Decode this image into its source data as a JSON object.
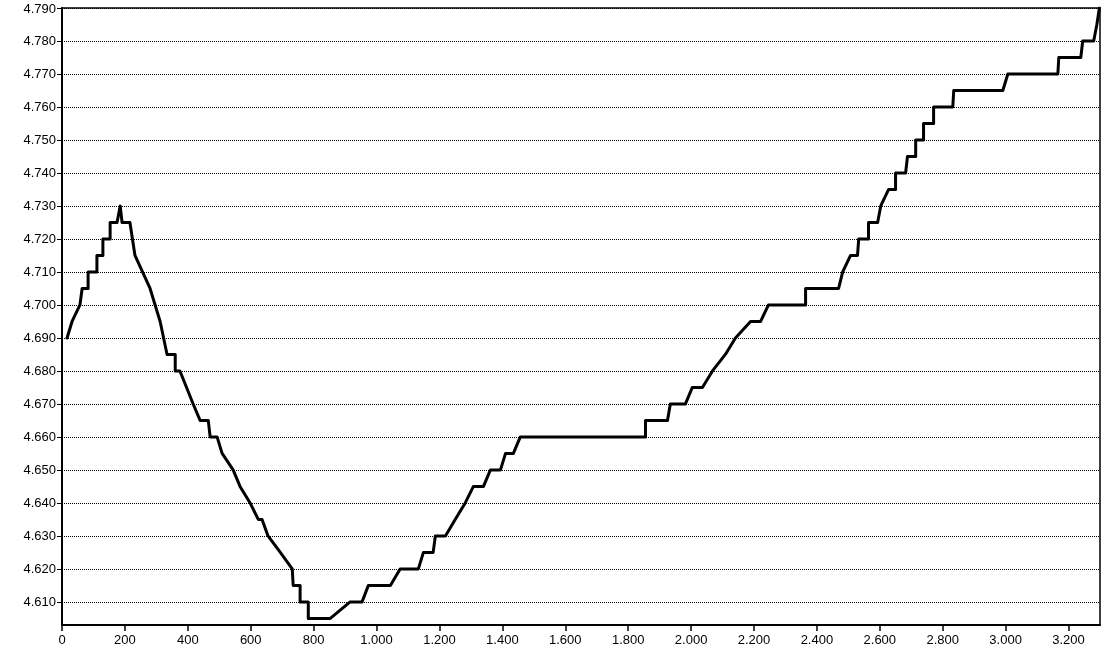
{
  "chart_data": {
    "type": "line",
    "grid": "y",
    "marker": "none",
    "line_style": "solid",
    "x": [
      16,
      32,
      57,
      64,
      83,
      83,
      111,
      111,
      130,
      130,
      153,
      153,
      175,
      185,
      191,
      216,
      232,
      280,
      312,
      334,
      360,
      360,
      375,
      417,
      439,
      465,
      471,
      493,
      509,
      544,
      566,
      598,
      624,
      636,
      655,
      694,
      732,
      735,
      757,
      757,
      783,
      783,
      853,
      916,
      954,
      974,
      1044,
      1075,
      1133,
      1149,
      1180,
      1187,
      1219,
      1250,
      1282,
      1308,
      1340,
      1362,
      1394,
      1410,
      1435,
      1457,
      1855,
      1855,
      1925,
      1934,
      1982,
      2004,
      2036,
      2068,
      2109,
      2141,
      2189,
      2221,
      2246,
      2364,
      2364,
      2469,
      2482,
      2507,
      2529,
      2533,
      2564,
      2564,
      2593,
      2603,
      2628,
      2650,
      2650,
      2682,
      2688,
      2714,
      2714,
      2739,
      2739,
      2771,
      2771,
      2832,
      2835,
      2991,
      3007,
      3166,
      3169,
      3239,
      3245,
      3280,
      3290,
      3298
    ],
    "series": [
      {
        "color": "#000000",
        "values": [
          4690,
          4695,
          4700,
          4705,
          4705,
          4710,
          4710,
          4715,
          4715,
          4720,
          4720,
          4725,
          4725,
          4730,
          4725,
          4725,
          4715,
          4705,
          4695,
          4685,
          4685,
          4680,
          4680,
          4670,
          4665,
          4665,
          4660,
          4660,
          4655,
          4650,
          4645,
          4640,
          4635,
          4635,
          4630,
          4625,
          4620,
          4615,
          4615,
          4610,
          4610,
          4605,
          4605,
          4610,
          4610,
          4615,
          4615,
          4620,
          4620,
          4625,
          4625,
          4630,
          4630,
          4635,
          4640,
          4645,
          4645,
          4650,
          4650,
          4655,
          4655,
          4660,
          4660,
          4665,
          4665,
          4670,
          4670,
          4675,
          4675,
          4680,
          4685,
          4690,
          4695,
          4695,
          4700,
          4700,
          4705,
          4705,
          4710,
          4715,
          4715,
          4720,
          4720,
          4725,
          4725,
          4730,
          4735,
          4735,
          4740,
          4740,
          4745,
          4745,
          4750,
          4750,
          4755,
          4755,
          4760,
          4760,
          4765,
          4765,
          4770,
          4770,
          4775,
          4775,
          4780,
          4780,
          4785,
          4790
        ]
      }
    ],
    "xlim": [
      0,
      3300
    ],
    "xticks": [
      0,
      200,
      400,
      600,
      800,
      {
        "value": 1000,
        "label": "1.000"
      },
      {
        "value": 1200,
        "label": "1.200"
      },
      {
        "value": 1400,
        "label": "1.400"
      },
      {
        "value": 1600,
        "label": "1.600"
      },
      {
        "value": 1800,
        "label": "1.800"
      },
      {
        "value": 2000,
        "label": "2.000"
      },
      {
        "value": 2200,
        "label": "2.200"
      },
      {
        "value": 2400,
        "label": "2.400"
      },
      {
        "value": 2600,
        "label": "2.600"
      },
      {
        "value": 2800,
        "label": "2.800"
      },
      {
        "value": 3000,
        "label": "3.000"
      },
      {
        "value": 3200,
        "label": "3.200"
      }
    ],
    "ylim": [
      4603,
      4790
    ],
    "yticks": [
      {
        "value": 4610,
        "label": "4.610"
      },
      {
        "value": 4620,
        "label": "4.620"
      },
      {
        "value": 4630,
        "label": "4.630"
      },
      {
        "value": 4640,
        "label": "4.640"
      },
      {
        "value": 4650,
        "label": "4.650"
      },
      {
        "value": 4660,
        "label": "4.660"
      },
      {
        "value": 4670,
        "label": "4.670"
      },
      {
        "value": 4680,
        "label": "4.680"
      },
      {
        "value": 4690,
        "label": "4.690"
      },
      {
        "value": 4700,
        "label": "4.700"
      },
      {
        "value": 4710,
        "label": "4.710"
      },
      {
        "value": 4720,
        "label": "4.720"
      },
      {
        "value": 4730,
        "label": "4.730"
      },
      {
        "value": 4740,
        "label": "4.740"
      },
      {
        "value": 4750,
        "label": "4.750"
      },
      {
        "value": 4760,
        "label": "4.760"
      },
      {
        "value": 4770,
        "label": "4.770"
      },
      {
        "value": 4780,
        "label": "4.780"
      },
      {
        "value": 4790,
        "label": "4.790"
      }
    ]
  }
}
